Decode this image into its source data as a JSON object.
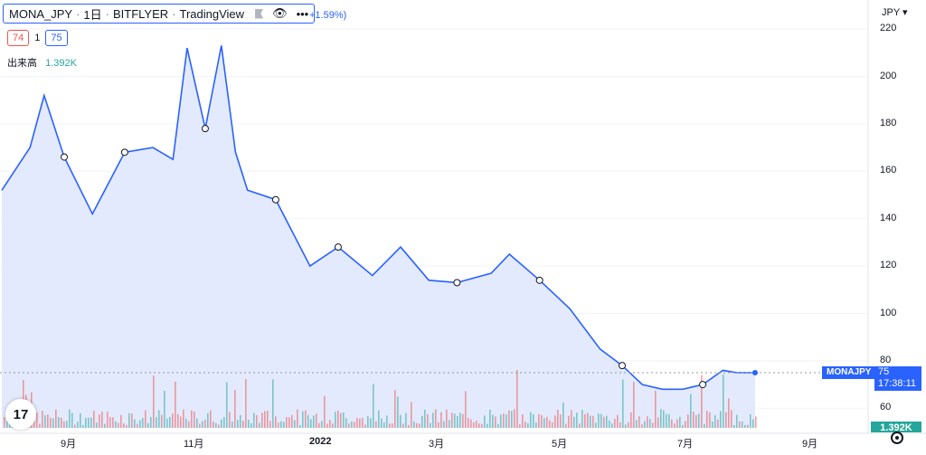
{
  "header": {
    "symbol": "MONA_JPY",
    "interval": "1日",
    "exchange": "BITFLYER",
    "provider": "TradingView",
    "change": "+1.59%)",
    "icons": [
      "flag-icon",
      "eye-icon",
      "more-icon"
    ]
  },
  "ohlc": {
    "bid": "74",
    "spread": "1",
    "ask": "75"
  },
  "volume": {
    "label": "出来高",
    "value": "1.392K"
  },
  "axis": {
    "currency_label": "JPY",
    "y_ticks": [
      "220",
      "200",
      "180",
      "160",
      "140",
      "120",
      "100",
      "80",
      "60"
    ],
    "x_ticks": [
      "9月",
      "11月",
      "2022",
      "3月",
      "5月",
      "7月",
      "9月"
    ]
  },
  "last_price": {
    "symbol": "MONAJPY",
    "price": "75",
    "countdown": "17:38:11"
  },
  "colors": {
    "line": "#2962ff",
    "area": "#e0e8fd",
    "vol_up": "#26a69a",
    "vol_down": "#ef5350"
  },
  "chart_data": {
    "type": "area",
    "symbol": "MONAJPY",
    "x": [
      "2021-08-01",
      "2021-08-15",
      "2021-08-22",
      "2021-09-01",
      "2021-09-15",
      "2021-10-01",
      "2021-10-15",
      "2021-10-25",
      "2021-11-01",
      "2021-11-10",
      "2021-11-18",
      "2021-11-25",
      "2021-12-01",
      "2021-12-15",
      "2022-01-01",
      "2022-01-15",
      "2022-02-01",
      "2022-02-15",
      "2022-03-01",
      "2022-03-15",
      "2022-04-01",
      "2022-04-10",
      "2022-04-25",
      "2022-05-10",
      "2022-05-25",
      "2022-06-05",
      "2022-06-15",
      "2022-06-25",
      "2022-07-05",
      "2022-07-15",
      "2022-07-25",
      "2022-08-01",
      "2022-08-10"
    ],
    "y": [
      152,
      170,
      192,
      166,
      142,
      168,
      170,
      165,
      212,
      178,
      213,
      168,
      152,
      148,
      120,
      128,
      116,
      128,
      114,
      113,
      117,
      125,
      114,
      102,
      85,
      78,
      70,
      68,
      68,
      70,
      76,
      75,
      75
    ],
    "ylim": [
      50,
      225
    ],
    "volume_label": "出来高",
    "last_volume": "1.392K"
  }
}
